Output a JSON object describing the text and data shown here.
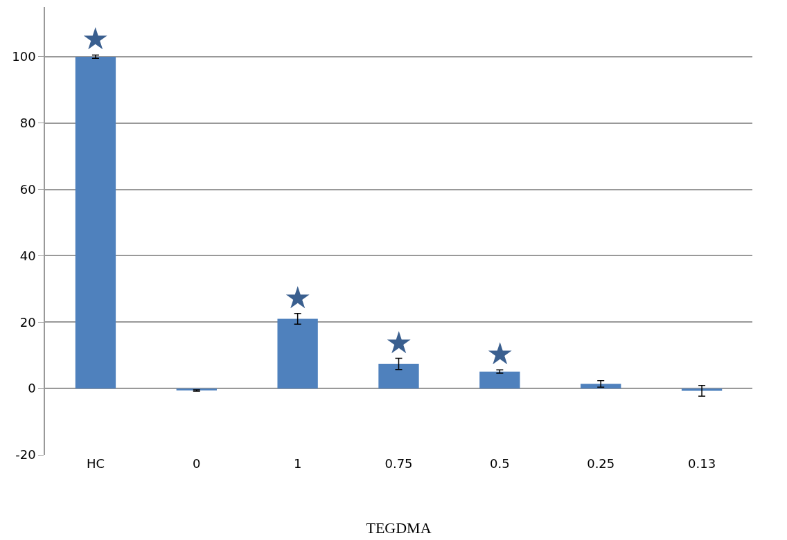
{
  "chart_data": {
    "type": "bar",
    "xlabel": "TEGDMA",
    "categories": [
      "HC",
      "0",
      "1",
      "0.75",
      "0.5",
      "0.25",
      "0.13"
    ],
    "values": [
      100,
      -0.6,
      21,
      7.4,
      5.1,
      1.4,
      -0.7
    ],
    "errors": [
      0.5,
      0.2,
      1.6,
      1.7,
      0.5,
      1,
      1.6
    ],
    "color": "#4f81bd",
    "ylim": [
      -20,
      115
    ],
    "yticks": [
      -20,
      0,
      20,
      40,
      60,
      80,
      100
    ],
    "grid": "y",
    "legend": false,
    "value_labels": [
      "★",
      null,
      "★",
      "★",
      "★",
      null,
      null
    ]
  }
}
